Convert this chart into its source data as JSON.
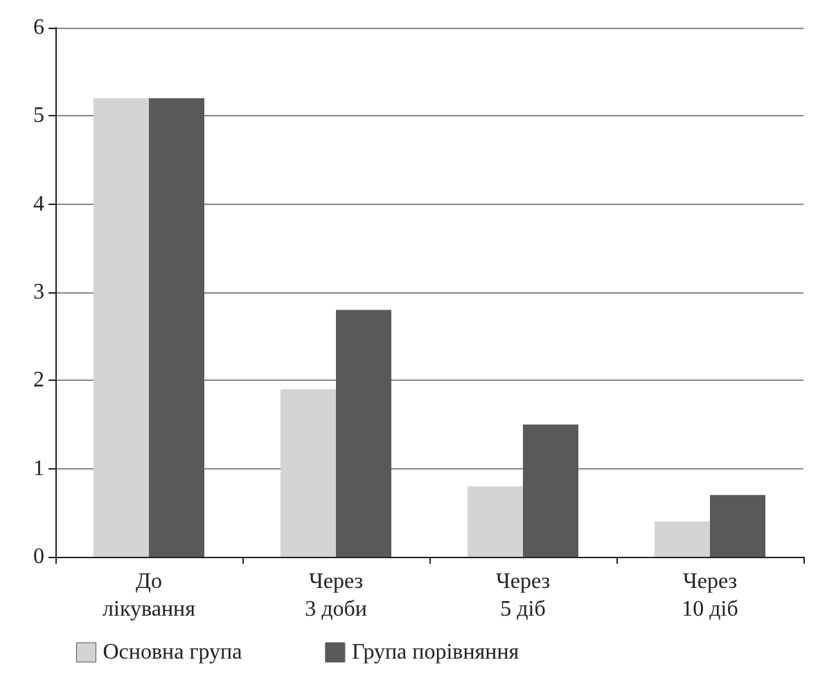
{
  "chart_data": {
    "type": "bar",
    "categories": [
      "До\nлікування",
      "Через\n3 доби",
      "Через\n5 діб",
      "Через\n10 діб"
    ],
    "series": [
      {
        "name": "Основна група",
        "color": "#d3d4d6",
        "values": [
          5.2,
          1.9,
          0.8,
          0.4
        ]
      },
      {
        "name": "Група порівняння",
        "color": "#58595b",
        "values": [
          5.2,
          2.8,
          1.5,
          0.7
        ]
      }
    ],
    "ylim": [
      0,
      6
    ],
    "yticks": [
      0,
      1,
      2,
      3,
      4,
      5,
      6
    ],
    "grid": "y",
    "legend": "bottom left"
  }
}
